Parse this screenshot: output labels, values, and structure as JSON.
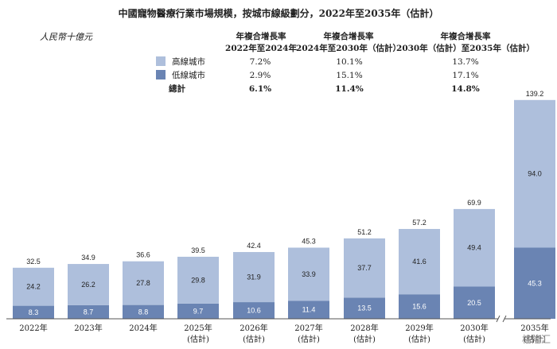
{
  "title": "中國寵物醫療行業市場規模，按城市線級劃分，2022年至2035年（估計）",
  "unit": "人民幣十億元",
  "cagr_table": {
    "headers": [
      [
        "年複合增長率",
        "2022年至2024年"
      ],
      [
        "年複合增長率",
        "2024年至2030年（估計）"
      ],
      [
        "年複合增長率",
        "2030年（估計）至2035年（估計）"
      ]
    ],
    "rows": [
      {
        "label": "高線城市",
        "color": "#aebfdc",
        "values": [
          "7.2%",
          "10.1%",
          "13.7%"
        ]
      },
      {
        "label": "低線城市",
        "color": "#6a84b3",
        "values": [
          "2.9%",
          "15.1%",
          "17.1%"
        ]
      }
    ],
    "total": {
      "label": "總計",
      "values": [
        "6.1%",
        "11.4%",
        "14.8%"
      ]
    }
  },
  "watermark": "格隆汇",
  "chart_data": {
    "type": "bar",
    "stacked": true,
    "categories": [
      [
        "2022年"
      ],
      [
        "2023年"
      ],
      [
        "2024年"
      ],
      [
        "2025年",
        "(估計)"
      ],
      [
        "2026年",
        "(估計)"
      ],
      [
        "2027年",
        "(估計)"
      ],
      [
        "2028年",
        "(估計)"
      ],
      [
        "2029年",
        "(估計)"
      ],
      [
        "2030年",
        "(估計)"
      ],
      [
        "2035年",
        "(估計)"
      ]
    ],
    "series": [
      {
        "name": "低線城市",
        "color": "#6a84b3",
        "values": [
          8.3,
          8.7,
          8.8,
          9.7,
          10.6,
          11.4,
          13.5,
          15.6,
          20.5,
          45.3
        ]
      },
      {
        "name": "高線城市",
        "color": "#aebfdc",
        "values": [
          24.2,
          26.2,
          27.8,
          29.8,
          31.9,
          33.9,
          37.7,
          41.6,
          49.4,
          94.0
        ]
      }
    ],
    "totals": [
      32.5,
      34.9,
      36.6,
      39.5,
      42.4,
      45.3,
      51.2,
      57.2,
      69.9,
      139.2
    ],
    "ylim": [
      0,
      139.2
    ],
    "axis_break_before_last": true,
    "grid": false,
    "legend": "top"
  }
}
